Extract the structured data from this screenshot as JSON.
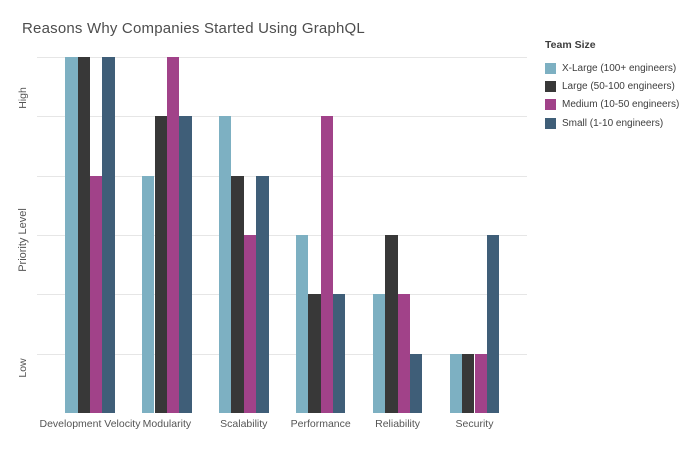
{
  "chart_data": {
    "type": "bar",
    "title": "Reasons Why Companies Started Using GraphQL",
    "categories": [
      "Development Velocity",
      "Modularity",
      "Scalability",
      "Performance",
      "Reliability",
      "Security"
    ],
    "series": [
      {
        "name": "X-Large (100+ engineers)",
        "color": "#7db0c2",
        "values": [
          6,
          4,
          5,
          3,
          2,
          1
        ]
      },
      {
        "name": "Large (50-100 engineers)",
        "color": "#383838",
        "values": [
          6,
          5,
          4,
          2,
          3,
          1
        ]
      },
      {
        "name": "Medium (10-50 engineers)",
        "color": "#a14289",
        "values": [
          4,
          6,
          3,
          5,
          2,
          1
        ]
      },
      {
        "name": "Small (1-10 engineers)",
        "color": "#3f5e78",
        "values": [
          6,
          5,
          4,
          2,
          1,
          3
        ]
      }
    ],
    "xlabel": "",
    "ylabel": "Priority Level",
    "yticks": [
      "Low",
      "High"
    ],
    "ylim": [
      0,
      6.2
    ],
    "gridline_values": [
      1,
      2,
      3,
      4,
      5,
      6
    ],
    "grid": true,
    "legend_title": "Team Size",
    "legend_position": "right",
    "background_color": "#ffffff",
    "gridline_color": "#e6e6e6"
  }
}
